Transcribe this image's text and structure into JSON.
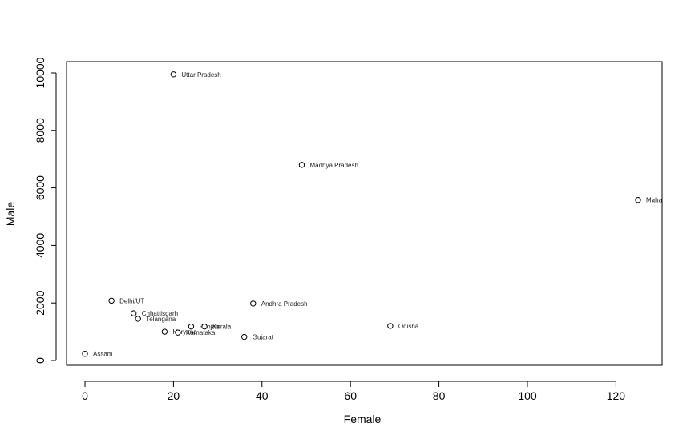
{
  "chart_data": {
    "type": "scatter",
    "title": "",
    "xlabel": "Female",
    "ylabel": "Male",
    "xlim": [
      0,
      130
    ],
    "ylim": [
      0,
      10200
    ],
    "x_ticks": [
      0,
      20,
      40,
      60,
      80,
      100,
      120
    ],
    "y_ticks": [
      0,
      2000,
      4000,
      6000,
      8000,
      10000
    ],
    "grid": false,
    "legend": "none",
    "points": [
      {
        "x": 20,
        "y": 9950,
        "label": "Uttar Pradesh"
      },
      {
        "x": 49,
        "y": 6800,
        "label": "Madhya Pradesh"
      },
      {
        "x": 125,
        "y": 5580,
        "label": "Maha"
      },
      {
        "x": 6,
        "y": 2080,
        "label": "Delhi/UT"
      },
      {
        "x": 38,
        "y": 1980,
        "label": "Andhra Pradesh"
      },
      {
        "x": 11,
        "y": 1640,
        "label": "Chhattisgarh"
      },
      {
        "x": 12,
        "y": 1450,
        "label": "Telangana"
      },
      {
        "x": 69,
        "y": 1200,
        "label": "Odisha"
      },
      {
        "x": 24,
        "y": 1180,
        "label": "Punjab"
      },
      {
        "x": 27,
        "y": 1180,
        "label": "Kerala"
      },
      {
        "x": 18,
        "y": 1000,
        "label": "Haryana"
      },
      {
        "x": 21,
        "y": 970,
        "label": "Karnataka"
      },
      {
        "x": 36,
        "y": 820,
        "label": "Gujarat"
      },
      {
        "x": 0,
        "y": 230,
        "label": "Assam"
      }
    ]
  }
}
